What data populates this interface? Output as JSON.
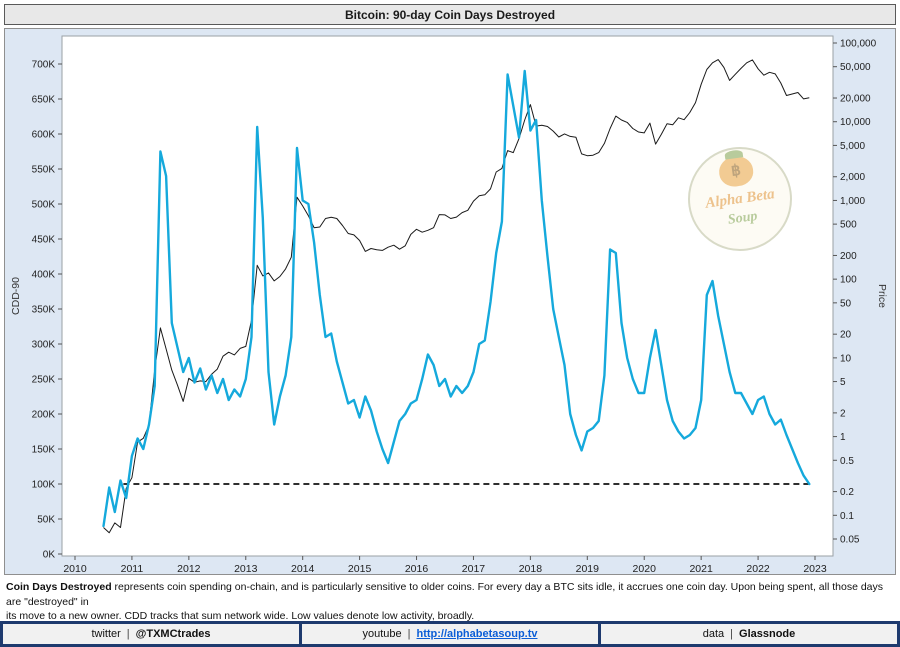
{
  "title": "Bitcoin: 90-day Coin Days Destroyed",
  "watermark": {
    "line1": "Alpha Beta",
    "line2": "Soup",
    "symbol": "฿"
  },
  "footnote": {
    "bold_lead": "Coin Days Destroyed",
    "line1_rest": " represents coin spending on-chain, and is particularly sensitive to older coins. For every day a BTC sits idle, it accrues one coin day. Upon being spent, all those days are \"destroyed\" in",
    "line2": "its move to a new owner. CDD tracks that sum network wide. Low values denote low activity, broadly."
  },
  "footer_bar": {
    "separator": "|",
    "twitter_label": "twitter",
    "twitter_handle": "@TXMCtrades",
    "youtube_label": "youtube",
    "youtube_url": "http://alphabetasoup.tv",
    "data_label": "data",
    "data_source": "Glassnode"
  },
  "colors": {
    "cdd_line": "#15a9dc",
    "price_line": "#1a1a1a",
    "reference_line": "#111111",
    "figure_background": "#dde7f3",
    "plot_background": "#ffffff",
    "footer_navy": "#1e3a6e"
  },
  "chart_data": {
    "type": "line",
    "title": "Bitcoin: 90-day Coin Days Destroyed",
    "x_start": 2010.5,
    "x_step": 0.1,
    "x_axis": {
      "min": 2010,
      "max": 2023,
      "ticks": [
        2010,
        2011,
        2012,
        2013,
        2014,
        2015,
        2016,
        2017,
        2018,
        2019,
        2020,
        2021,
        2022,
        2023
      ]
    },
    "left_axis": {
      "label": "CDD-90",
      "unit": "thousand coin-days",
      "min": 0,
      "max": 700,
      "tick_step": 50,
      "ticks": [
        "0K",
        "50K",
        "100K",
        "150K",
        "200K",
        "250K",
        "300K",
        "350K",
        "400K",
        "450K",
        "500K",
        "550K",
        "600K",
        "650K",
        "700K"
      ]
    },
    "right_axis": {
      "label": "Price",
      "scale": "log",
      "tick_values": [
        100000,
        50000,
        20000,
        10000,
        5000,
        2000,
        1000,
        500,
        200,
        100,
        50,
        20,
        10,
        5,
        2,
        1,
        0.5,
        0.2,
        0.1,
        0.05
      ],
      "tick_labels": [
        "100,000",
        "50,000",
        "20,000",
        "10,000",
        "5,000",
        "2,000",
        "1,000",
        "500",
        "200",
        "100",
        "50",
        "20",
        "10",
        "5",
        "2",
        "1",
        "0.5",
        "0.2",
        "0.1",
        "0.05"
      ]
    },
    "reference_line": {
      "axis": "left",
      "value_thousands": 100,
      "style": "dashed",
      "color": "#111111",
      "x_from": 2010.85,
      "x_to": 2022.9
    },
    "series": [
      {
        "name": "CDD-90",
        "axis": "left",
        "color": "#15a9dc",
        "units": "thousand coin-days",
        "values": [
          40,
          95,
          60,
          105,
          80,
          140,
          165,
          150,
          185,
          240,
          575,
          540,
          330,
          295,
          260,
          280,
          245,
          265,
          235,
          255,
          230,
          250,
          220,
          235,
          225,
          250,
          310,
          610,
          480,
          260,
          185,
          225,
          255,
          310,
          580,
          505,
          500,
          445,
          370,
          310,
          315,
          275,
          245,
          215,
          220,
          195,
          225,
          205,
          175,
          150,
          130,
          160,
          190,
          200,
          215,
          220,
          250,
          285,
          270,
          240,
          250,
          225,
          240,
          230,
          240,
          260,
          300,
          305,
          360,
          430,
          475,
          685,
          640,
          595,
          690,
          605,
          620,
          505,
          425,
          350,
          310,
          270,
          200,
          170,
          148,
          175,
          180,
          190,
          255,
          435,
          430,
          330,
          280,
          250,
          230,
          230,
          280,
          320,
          270,
          220,
          190,
          175,
          165,
          170,
          180,
          220,
          370,
          390,
          340,
          300,
          260,
          230,
          230,
          215,
          200,
          220,
          225,
          200,
          185,
          192,
          170,
          150,
          130,
          112,
          100
        ]
      },
      {
        "name": "BTC Price",
        "axis": "right",
        "color": "#1a1a1a",
        "units": "USD",
        "values": [
          0.07,
          0.06,
          0.08,
          0.07,
          0.22,
          0.3,
          0.85,
          0.95,
          1.4,
          7,
          24,
          13,
          7,
          4.5,
          2.8,
          5.5,
          4.9,
          5.1,
          5.0,
          6.2,
          7.2,
          10.5,
          11.8,
          10.9,
          13.2,
          14,
          30,
          150,
          110,
          120,
          95,
          108,
          135,
          190,
          1100,
          850,
          640,
          450,
          460,
          590,
          610,
          590,
          480,
          380,
          365,
          310,
          225,
          245,
          237,
          232,
          255,
          270,
          240,
          265,
          370,
          430,
          395,
          418,
          450,
          660,
          655,
          590,
          615,
          700,
          750,
          980,
          1150,
          1180,
          1400,
          2300,
          2550,
          4300,
          4050,
          6100,
          10500,
          16500,
          8800,
          9000,
          8700,
          7600,
          6400,
          7000,
          6500,
          6350,
          3900,
          3700,
          3750,
          4050,
          5300,
          8200,
          11800,
          10500,
          9800,
          8200,
          7400,
          7200,
          9600,
          5200,
          6900,
          9400,
          9150,
          11200,
          10600,
          13100,
          17500,
          30000,
          46000,
          56000,
          61500,
          49000,
          33500,
          40000,
          47500,
          56000,
          61000,
          47000,
          39000,
          42500,
          40500,
          31000,
          21500,
          22500,
          23500,
          19500,
          20200
        ]
      }
    ]
  }
}
